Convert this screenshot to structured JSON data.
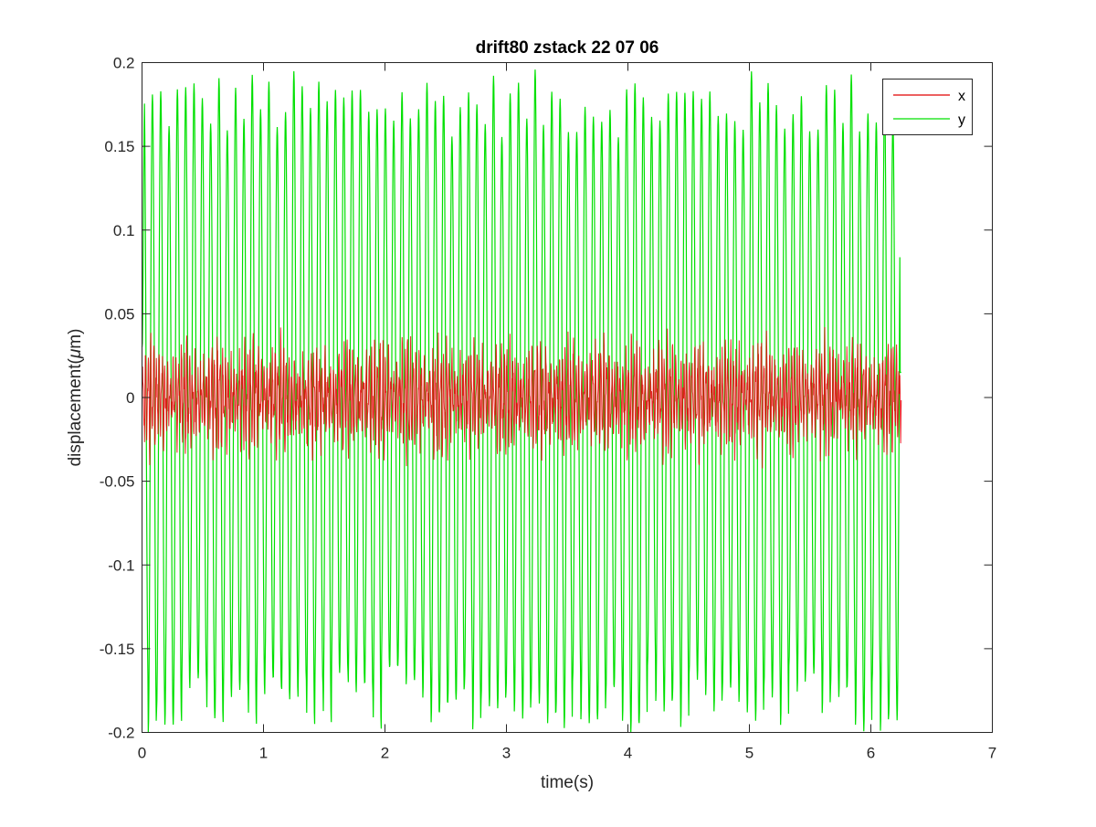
{
  "chart_data": {
    "type": "line",
    "title": "drift80 zstack 22 07 06",
    "xlabel": "time(s)",
    "ylabel_prefix": "displacement(",
    "ylabel_mu": "μ",
    "ylabel_suffix": "m)",
    "xlim": [
      0,
      7
    ],
    "ylim": [
      -0.2,
      0.2
    ],
    "x_ticks": [
      0,
      1,
      2,
      3,
      4,
      5,
      6,
      7
    ],
    "x_tick_labels": [
      "0",
      "1",
      "2",
      "3",
      "4",
      "5",
      "6",
      "7"
    ],
    "y_ticks": [
      -0.2,
      -0.15,
      -0.1,
      -0.05,
      0,
      0.05,
      0.1,
      0.15,
      0.2
    ],
    "y_tick_labels": [
      "-0.2",
      "-0.15",
      "-0.1",
      "-0.05",
      "0",
      "0.05",
      "0.1",
      "0.15",
      "0.2"
    ],
    "grid": false,
    "legend_position": "top-right",
    "duration": 6.25,
    "series": [
      {
        "name": "x",
        "color": "#e00000",
        "kind": "noisy oscillation",
        "main_frequency_hz": 44,
        "amplitude_range": [
          -0.045,
          0.048
        ]
      },
      {
        "name": "y",
        "color": "#00e000",
        "kind": "oscillation",
        "main_frequency_hz": 14.6,
        "amplitude_range": [
          -0.2,
          0.196
        ],
        "start_value": 0.03,
        "end_value": 0.015
      }
    ]
  }
}
